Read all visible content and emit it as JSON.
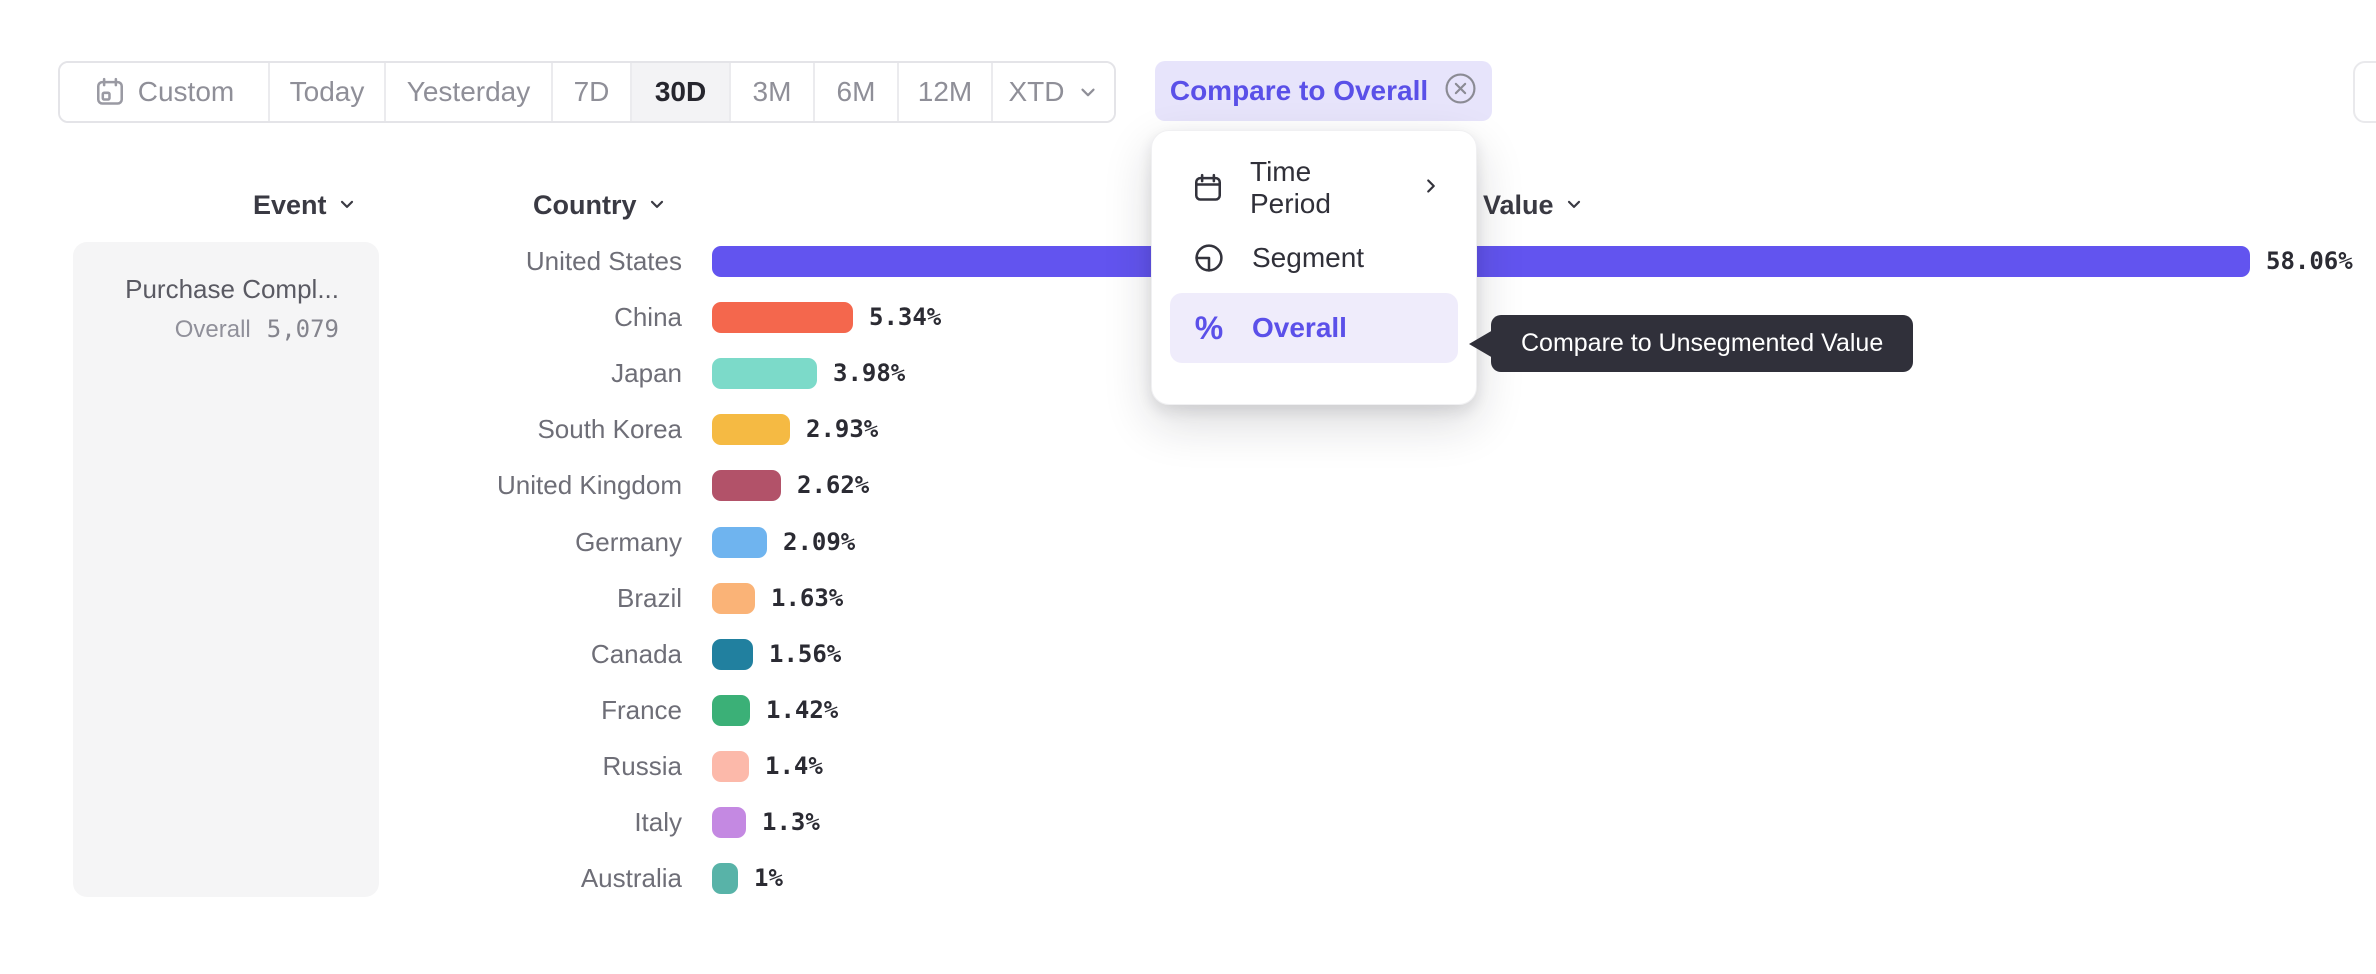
{
  "toolbar": {
    "buttons": [
      {
        "label": "Custom",
        "icon": "calendar-icon"
      },
      {
        "label": "Today"
      },
      {
        "label": "Yesterday"
      },
      {
        "label": "7D"
      },
      {
        "label": "30D",
        "selected": true
      },
      {
        "label": "3M"
      },
      {
        "label": "6M"
      },
      {
        "label": "12M"
      },
      {
        "label": "XTD",
        "icon": "chevron-down-icon"
      }
    ],
    "selected": "30D"
  },
  "compare_chip": {
    "label": "Compare to Overall",
    "text_color": "#5a50e8",
    "background": "#e7e4fb",
    "remove_icon": "x-circle-icon"
  },
  "column_headers": {
    "event": "Event",
    "country": "Country",
    "value": "Value"
  },
  "event_card": {
    "title": "Purchase Compl...",
    "overall_label": "Overall",
    "overall_value": "5,079"
  },
  "dropdown_menu": {
    "items": [
      {
        "label": "Time Period",
        "icon": "calendar-icon",
        "has_submenu": true
      },
      {
        "label": "Segment",
        "icon": "segment-icon"
      },
      {
        "label": "Overall",
        "icon": "percent-icon",
        "selected": true
      }
    ]
  },
  "tooltip": {
    "text": "Compare to Unsegmented Value",
    "background": "#30303a"
  },
  "chart_data": {
    "type": "bar",
    "orientation": "horizontal",
    "categories": [
      "United States",
      "China",
      "Japan",
      "South Korea",
      "United Kingdom",
      "Germany",
      "Brazil",
      "Canada",
      "France",
      "Russia",
      "Italy",
      "Australia"
    ],
    "values": [
      58.06,
      5.34,
      3.98,
      2.93,
      2.62,
      2.09,
      1.63,
      1.56,
      1.42,
      1.4,
      1.3,
      1.0
    ],
    "value_labels": [
      "58.06%",
      "5.34%",
      "3.98%",
      "2.93%",
      "2.62%",
      "2.09%",
      "1.63%",
      "1.56%",
      "1.42%",
      "1.4%",
      "1.3%",
      "1%"
    ],
    "colors": [
      "#6254ef",
      "#f4674d",
      "#7cdac9",
      "#f5ba43",
      "#b25269",
      "#6fb4ef",
      "#fab377",
      "#21809f",
      "#3bb077",
      "#fcb9aa",
      "#c489e2",
      "#58b3a8"
    ],
    "unit": "%",
    "xlim": [
      0,
      60
    ],
    "grid": false,
    "legend": false
  }
}
